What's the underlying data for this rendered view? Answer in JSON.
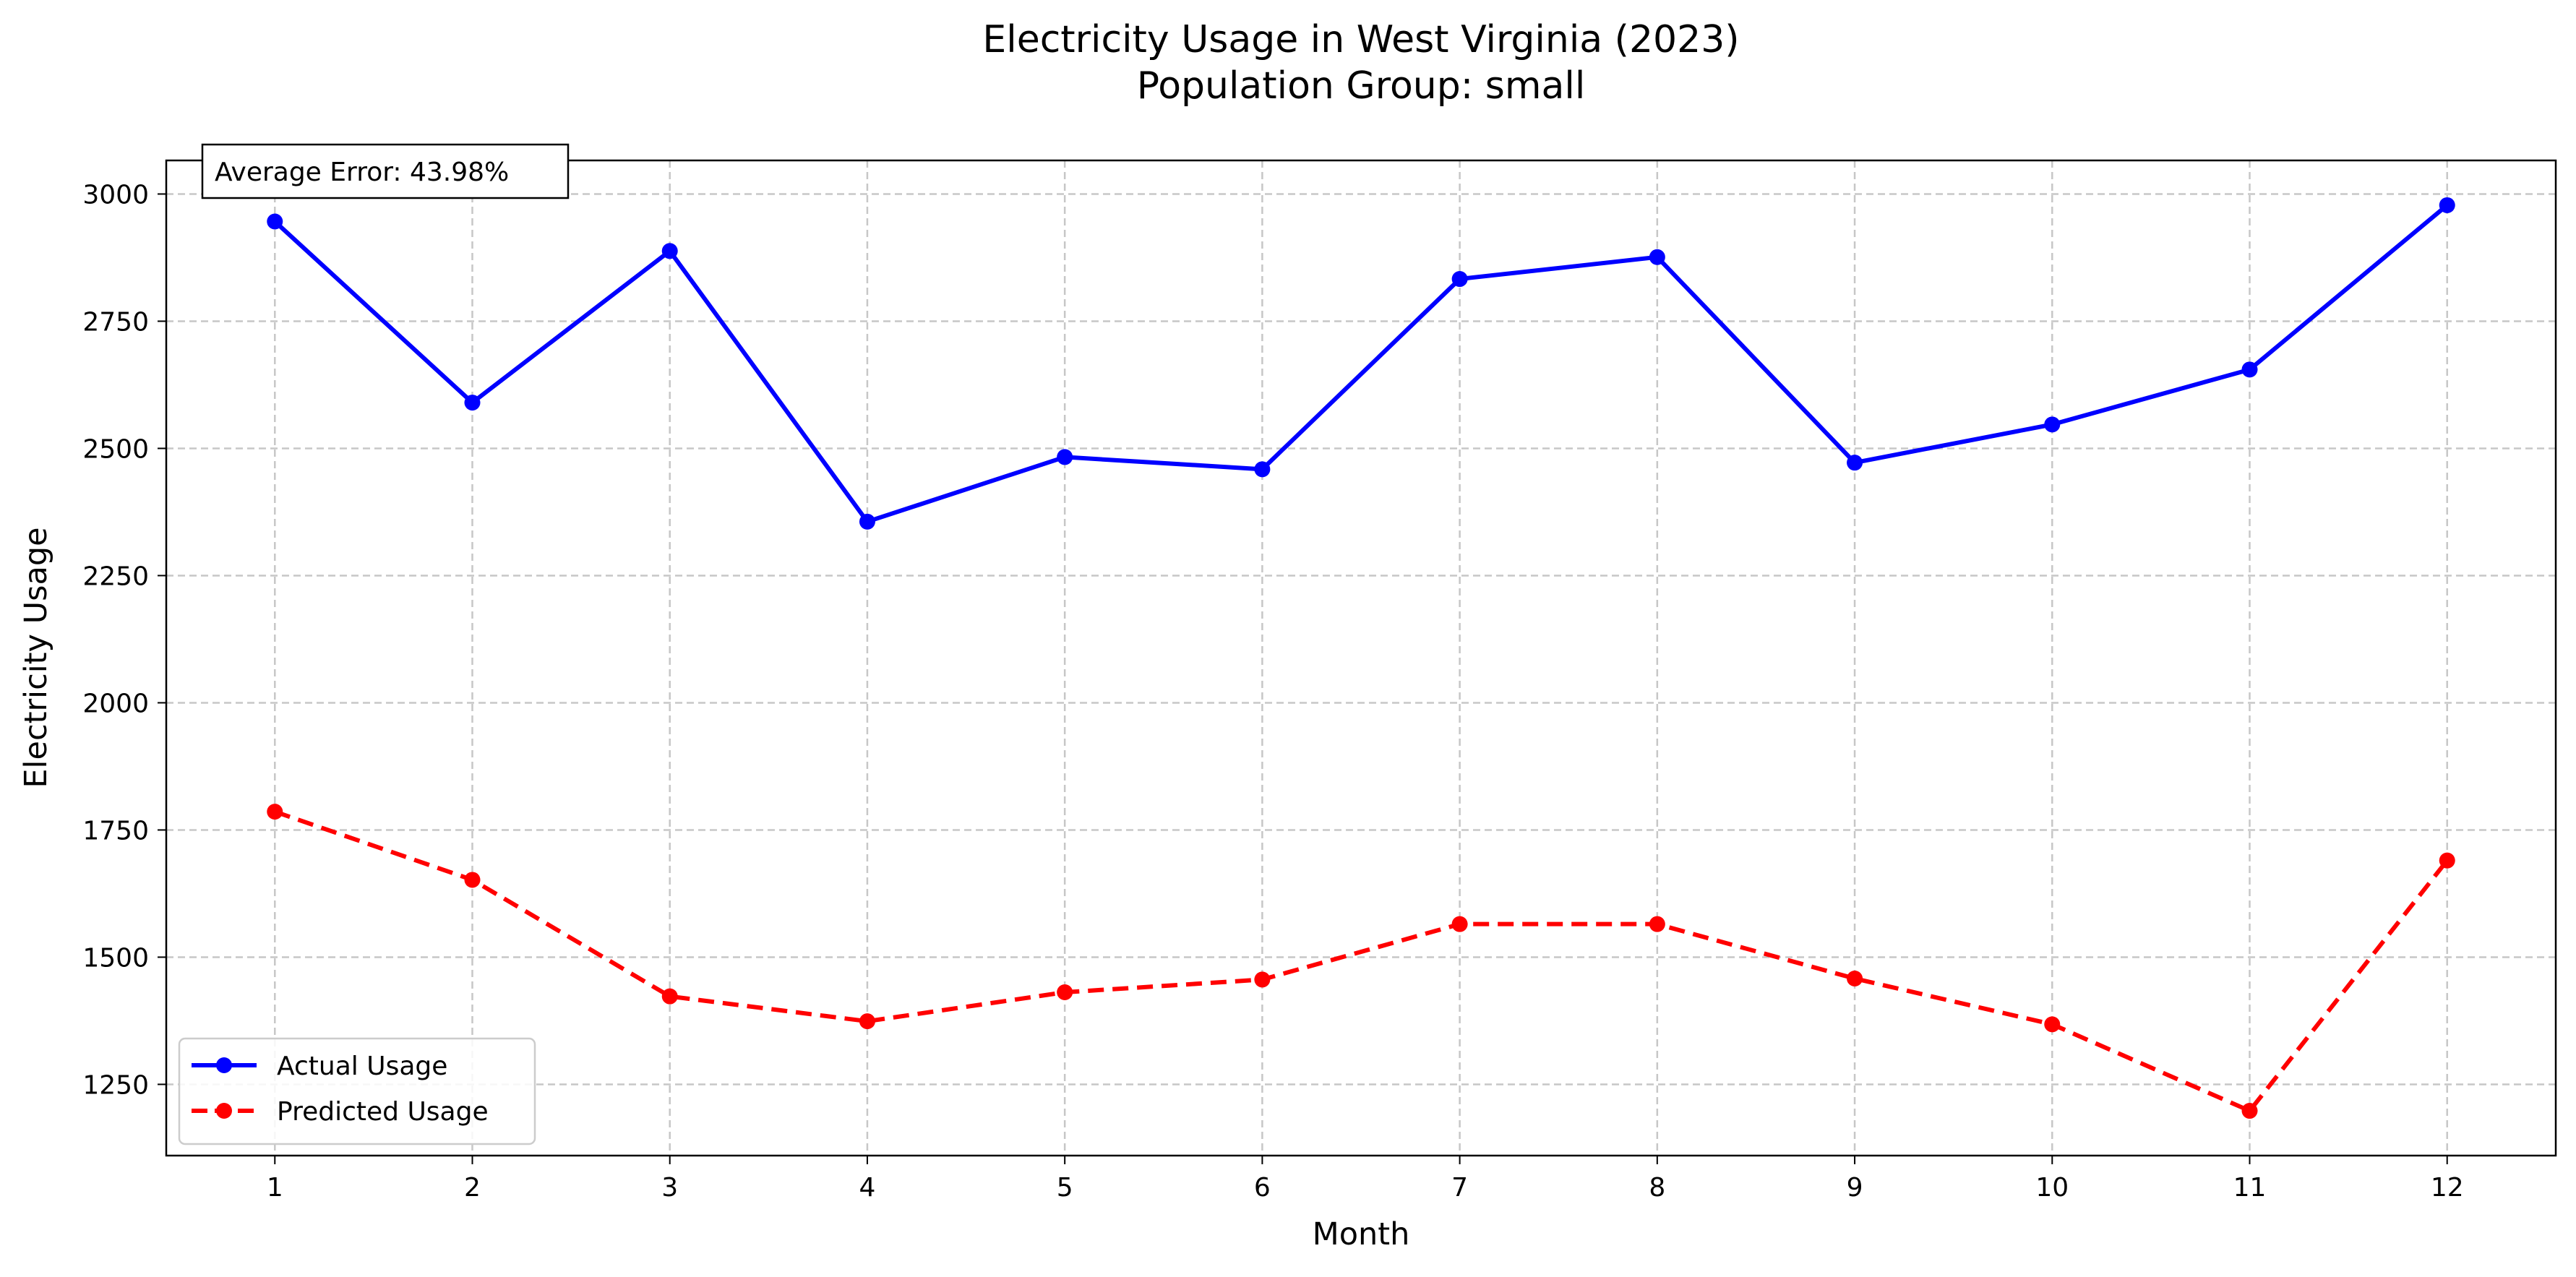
{
  "chart_data": {
    "type": "line",
    "title": "Electricity Usage in West Virginia (2023)",
    "subtitle": "Population Group: small",
    "xlabel": "Month",
    "ylabel": "Electricity Usage",
    "x": [
      1,
      2,
      3,
      4,
      5,
      6,
      7,
      8,
      9,
      10,
      11,
      12
    ],
    "xlim": [
      0.45,
      12.55
    ],
    "ylim": [
      1110,
      3066
    ],
    "yticks": [
      1250,
      1500,
      1750,
      2000,
      2250,
      2500,
      2750,
      3000
    ],
    "grid": true,
    "legend_position": "lower-left",
    "series": [
      {
        "name": "Actual Usage",
        "color": "#0000ff",
        "style": "solid",
        "marker": "circle",
        "values": [
          2946,
          2590,
          2888,
          2356,
          2483,
          2459,
          2833,
          2876,
          2472,
          2547,
          2655,
          2978
        ]
      },
      {
        "name": "Predicted Usage",
        "color": "#ff0000",
        "style": "dashed",
        "marker": "circle",
        "values": [
          1786,
          1652,
          1423,
          1374,
          1431,
          1456,
          1565,
          1565,
          1458,
          1368,
          1198,
          1690
        ]
      }
    ],
    "annotation": {
      "text": "Average Error: 43.98%",
      "position": "top-left"
    }
  }
}
